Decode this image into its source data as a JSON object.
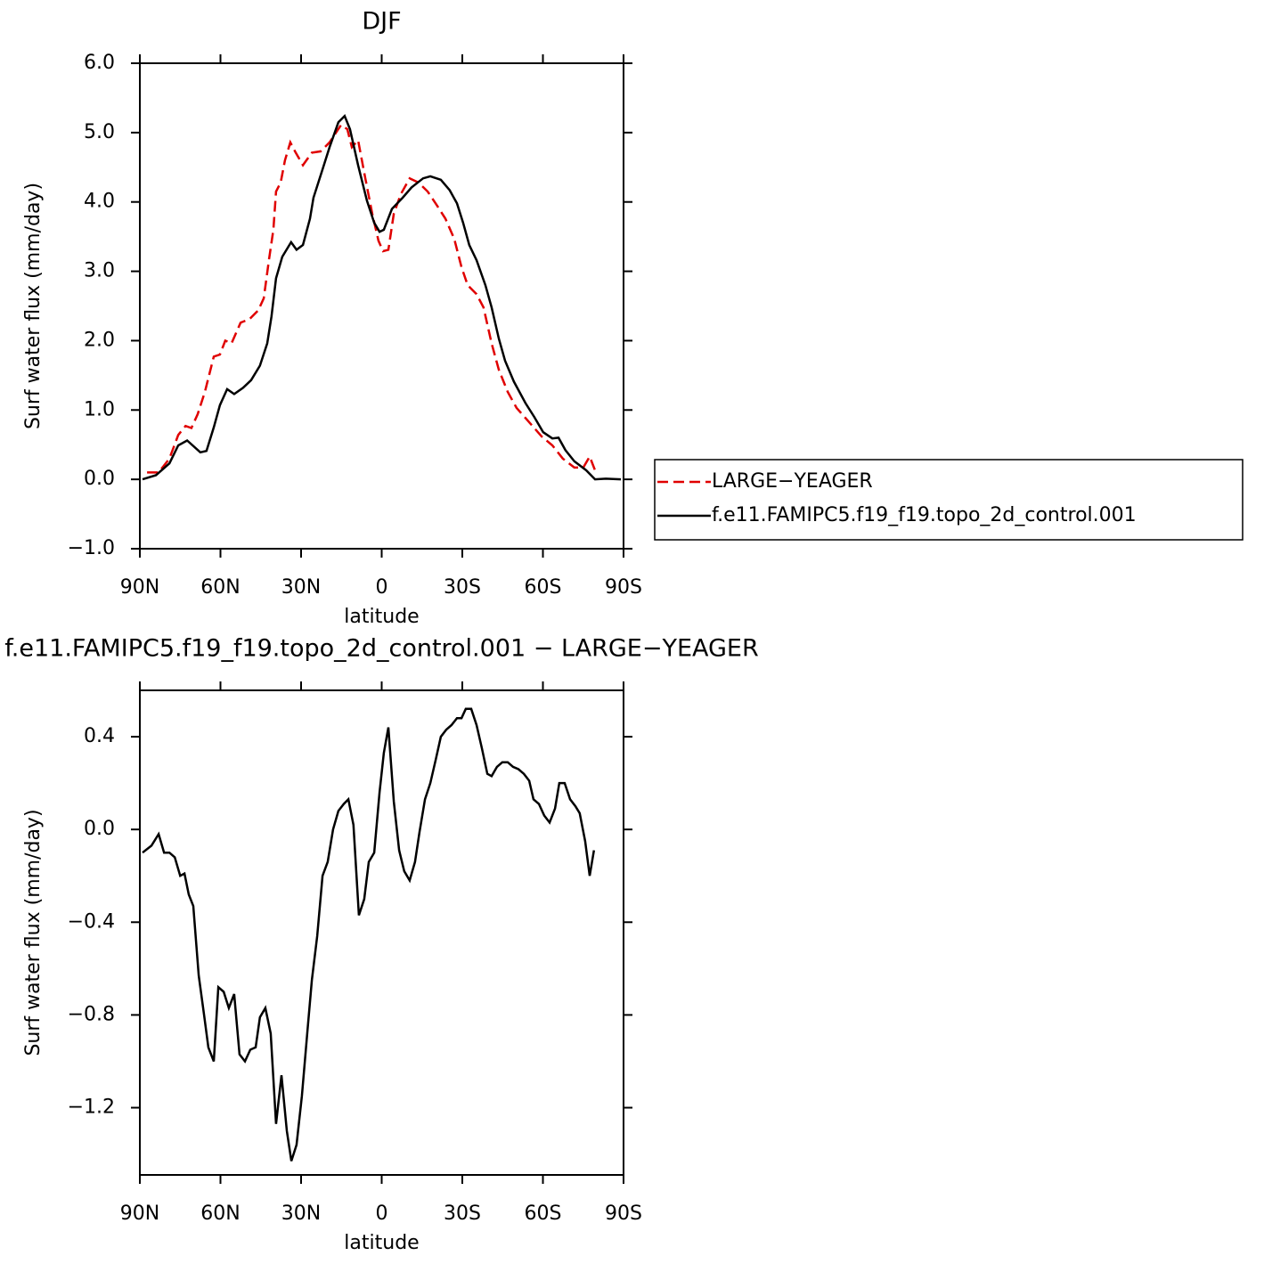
{
  "chart_data": [
    {
      "type": "line",
      "title": "DJF",
      "x_label": "latitude",
      "y_label": "Surf water flux (mm/day)",
      "xlim": [
        90,
        -90
      ],
      "xticks": [
        {
          "value": 90,
          "label": "90N"
        },
        {
          "value": 60,
          "label": "60N"
        },
        {
          "value": 30,
          "label": "30N"
        },
        0,
        {
          "value": -30,
          "label": "30S"
        },
        {
          "value": -60,
          "label": "60S"
        },
        {
          "value": -90,
          "label": "90S"
        }
      ],
      "ylim": [
        -1,
        6
      ],
      "yticks": [
        {
          "value": -1,
          "label": "−1.0"
        },
        {
          "value": 0,
          "label": "0.0"
        },
        {
          "value": 1,
          "label": "1.0"
        },
        {
          "value": 2,
          "label": "2.0"
        },
        {
          "value": 3,
          "label": "3.0"
        },
        {
          "value": 4,
          "label": "4.0"
        },
        {
          "value": 5,
          "label": "5.0"
        },
        {
          "value": 6,
          "label": "6.0"
        }
      ],
      "legend": "right",
      "series": [
        {
          "name": "LARGE−YEAGER",
          "color": "#e00000",
          "dash": true,
          "x": [
            87.3,
            83,
            79,
            75.7,
            73,
            70.8,
            68.5,
            65.8,
            62.5,
            60.2,
            58.2,
            55.9,
            52.5,
            49.2,
            45.9,
            43.9,
            41.9,
            40.3,
            39.3,
            37.6,
            36,
            34,
            32,
            29.3,
            26,
            22.7,
            19.4,
            15.1,
            12.8,
            11.1,
            8.8,
            6.1,
            3.5,
            1.2,
            -0.5,
            -2.5,
            -4.5,
            -7.1,
            -10.4,
            -13.7,
            -17.1,
            -20.4,
            -23.7,
            -27,
            -29.7,
            -32,
            -35.3,
            -37.9,
            -40.9,
            -43.6,
            -46.9,
            -50.2,
            -55.2,
            -59.5,
            -63.5,
            -67.4,
            -71.7,
            -75,
            -77.4,
            -79.4
          ],
          "values": [
            0.1,
            0.1,
            0.3,
            0.64,
            0.77,
            0.74,
            0.94,
            1.26,
            1.77,
            1.8,
            2.0,
            1.96,
            2.26,
            2.31,
            2.44,
            2.61,
            3.18,
            3.6,
            4.15,
            4.28,
            4.6,
            4.86,
            4.71,
            4.53,
            4.71,
            4.73,
            4.86,
            5.11,
            5.05,
            4.79,
            4.89,
            4.34,
            3.83,
            3.44,
            3.29,
            3.31,
            3.83,
            4.11,
            4.34,
            4.28,
            4.15,
            3.96,
            3.76,
            3.47,
            3.06,
            2.8,
            2.67,
            2.48,
            1.96,
            1.58,
            1.26,
            1.03,
            0.81,
            0.62,
            0.49,
            0.3,
            0.17,
            0.17,
            0.33,
            0.13
          ]
        },
        {
          "name": "f.e11.FAMIPC5.f19_f19.topo_2d_control.001",
          "color": "#000000",
          "dash": false,
          "x": [
            89,
            84,
            79,
            75.7,
            72.4,
            67.5,
            65.2,
            62.5,
            60.2,
            57.5,
            54.9,
            51.6,
            48.6,
            45.3,
            42.6,
            41,
            39.3,
            37,
            33.7,
            31.7,
            29.3,
            26.7,
            25.4,
            22,
            19.4,
            16.1,
            13.8,
            11.8,
            8.8,
            5.5,
            2.8,
            0.8,
            -0.8,
            -3.8,
            -7.8,
            -11.1,
            -15.4,
            -18.1,
            -22,
            -25.3,
            -28,
            -30.3,
            -32.6,
            -35.3,
            -38.6,
            -40.9,
            -43.6,
            -45.9,
            -49.2,
            -53.5,
            -56.8,
            -60.1,
            -63.5,
            -65.8,
            -68.4,
            -71.7,
            -76.1,
            -79.4,
            -83.4,
            -89
          ],
          "values": [
            0.0,
            0.06,
            0.23,
            0.49,
            0.56,
            0.39,
            0.41,
            0.75,
            1.07,
            1.3,
            1.23,
            1.32,
            1.43,
            1.64,
            1.96,
            2.35,
            2.9,
            3.21,
            3.42,
            3.31,
            3.38,
            3.76,
            4.06,
            4.47,
            4.79,
            5.15,
            5.24,
            5.05,
            4.53,
            4.02,
            3.7,
            3.57,
            3.6,
            3.9,
            4.06,
            4.21,
            4.34,
            4.37,
            4.32,
            4.17,
            3.98,
            3.7,
            3.38,
            3.16,
            2.8,
            2.48,
            2.03,
            1.71,
            1.41,
            1.1,
            0.9,
            0.68,
            0.59,
            0.6,
            0.42,
            0.26,
            0.13,
            0.0,
            0.01,
            0
          ]
        }
      ]
    },
    {
      "type": "line",
      "title": "f.e11.FAMIPC5.f19_f19.topo_2d_control.001 − LARGE−YEAGER",
      "x_label": "latitude",
      "y_label": "Surf water flux (mm/day)",
      "xlim": [
        90,
        -90
      ],
      "xticks": [
        {
          "value": 90,
          "label": "90N"
        },
        {
          "value": 60,
          "label": "60N"
        },
        {
          "value": 30,
          "label": "30N"
        },
        0,
        {
          "value": -30,
          "label": "30S"
        },
        {
          "value": -60,
          "label": "60S"
        },
        {
          "value": -90,
          "label": "90S"
        }
      ],
      "ylim": [
        -1.49,
        0.6
      ],
      "yticks": [
        {
          "value": -1.2,
          "label": "−1.2"
        },
        {
          "value": -0.8,
          "label": "−0.8"
        },
        {
          "value": -0.4,
          "label": "−0.4"
        },
        {
          "value": 0,
          "label": "0.0"
        },
        0.4
      ],
      "series": [
        {
          "color": "#000000",
          "dash": false,
          "x": [
            89,
            85.7,
            83,
            81,
            79,
            77,
            75,
            73.4,
            71.8,
            70.1,
            68.1,
            66.1,
            64.5,
            62.5,
            60.8,
            58.8,
            56.9,
            54.9,
            52.9,
            50.9,
            48.9,
            46.9,
            45.3,
            43.3,
            41.3,
            39.3,
            37.3,
            35.3,
            33.6,
            31.7,
            29.7,
            27.7,
            26,
            24,
            22,
            20.1,
            18.1,
            16.1,
            14.1,
            12.4,
            10.5,
            8.5,
            6.5,
            4.8,
            2.8,
            0.8,
            -0.8,
            -2.5,
            -4.5,
            -6.5,
            -8.4,
            -10.4,
            -12.4,
            -14.1,
            -16.1,
            -18.1,
            -20.1,
            -22,
            -24,
            -26,
            -28,
            -29.7,
            -31.3,
            -33.3,
            -35.3,
            -37.3,
            -39.3,
            -40.9,
            -42.9,
            -44.9,
            -46.9,
            -48.9,
            -50.9,
            -52.9,
            -54.9,
            -56.5,
            -58.5,
            -60.5,
            -62.5,
            -64.5,
            -66.1,
            -68.1,
            -70.1,
            -72.1,
            -73.7,
            -75.7,
            -77.4,
            -79
          ],
          "values": [
            -0.1,
            -0.07,
            -0.02,
            -0.1,
            -0.1,
            -0.12,
            -0.2,
            -0.19,
            -0.28,
            -0.33,
            -0.63,
            -0.8,
            -0.94,
            -1.0,
            -0.68,
            -0.7,
            -0.77,
            -0.71,
            -0.97,
            -1.0,
            -0.95,
            -0.94,
            -0.81,
            -0.77,
            -0.88,
            -1.27,
            -1.06,
            -1.3,
            -1.43,
            -1.36,
            -1.15,
            -0.88,
            -0.65,
            -0.46,
            -0.2,
            -0.14,
            0.0,
            0.08,
            0.11,
            0.13,
            0.02,
            -0.37,
            -0.3,
            -0.14,
            -0.1,
            0.16,
            0.33,
            0.44,
            0.12,
            -0.09,
            -0.18,
            -0.22,
            -0.14,
            -0.01,
            0.13,
            0.2,
            0.3,
            0.4,
            0.43,
            0.45,
            0.48,
            0.48,
            0.52,
            0.52,
            0.45,
            0.35,
            0.24,
            0.23,
            0.27,
            0.29,
            0.29,
            0.27,
            0.26,
            0.24,
            0.21,
            0.13,
            0.11,
            0.06,
            0.03,
            0.09,
            0.2,
            0.2,
            0.13,
            0.1,
            0.07,
            -0.05,
            -0.2,
            -0.09
          ]
        }
      ]
    }
  ]
}
